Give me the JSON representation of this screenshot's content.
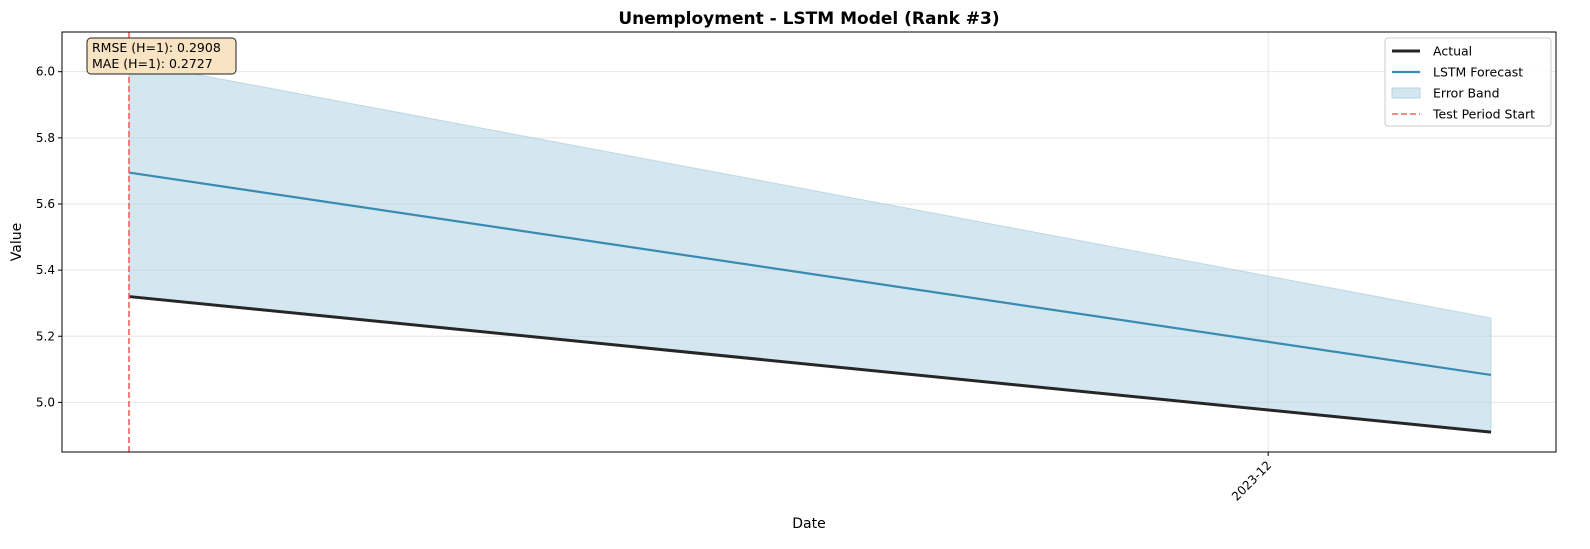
{
  "chart_data": {
    "type": "line",
    "title": "Unemployment - LSTM Model (Rank #3)",
    "xlabel": "Date",
    "ylabel": "Value",
    "x_ticks": [
      {
        "label": "2023-12",
        "x": 0.8364
      }
    ],
    "ylim": [
      4.85,
      6.12
    ],
    "y_ticks": [
      5.0,
      5.2,
      5.4,
      5.6,
      5.8,
      6.0
    ],
    "grid": true,
    "legend_position": "top-right",
    "series": [
      {
        "name": "Actual",
        "color": "#262626",
        "points": [
          {
            "x": 0,
            "y": 5.32
          },
          {
            "x": 1,
            "y": 4.91
          }
        ]
      },
      {
        "name": "LSTM Forecast",
        "color": "#3a8bb3",
        "points": [
          {
            "x": 0,
            "y": 5.695
          },
          {
            "x": 1,
            "y": 5.083
          }
        ]
      }
    ],
    "error_band": {
      "name": "Error Band",
      "color": "#a9cde0",
      "upper": [
        {
          "x": 0,
          "y": 6.03
        },
        {
          "x": 1,
          "y": 5.255
        }
      ],
      "lower": [
        {
          "x": 0,
          "y": 5.32
        },
        {
          "x": 1,
          "y": 4.91
        }
      ]
    },
    "vline": {
      "name": "Test Period Start",
      "x": 0,
      "color": "#f0605a"
    },
    "annotation": {
      "lines": [
        "RMSE (H=1): 0.2908",
        "MAE (H=1): 0.2727"
      ],
      "background": "#f8e3c3"
    },
    "legend_entries": [
      "Actual",
      "LSTM Forecast",
      "Error Band",
      "Test Period Start"
    ]
  }
}
